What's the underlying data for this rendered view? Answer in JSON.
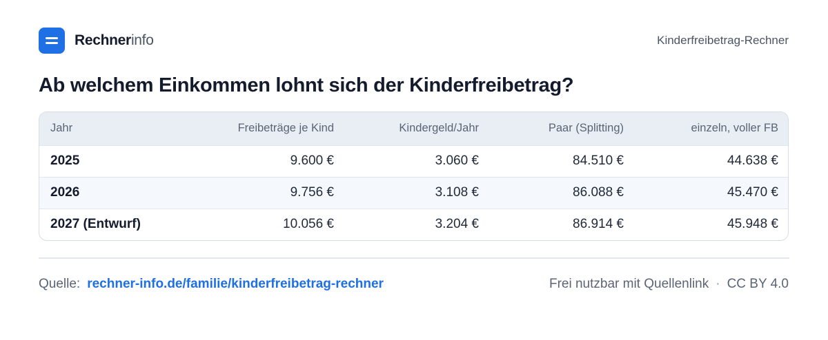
{
  "brand": {
    "strong": "Rechner",
    "light": "info"
  },
  "header": {
    "tool_name": "Kinderfreibetrag-Rechner"
  },
  "title": "Ab welchem Einkommen lohnt sich der Kinderfreibetrag?",
  "table": {
    "headers": [
      "Jahr",
      "Freibeträge je Kind",
      "Kindergeld/Jahr",
      "Paar (Splitting)",
      "einzeln, voller FB"
    ],
    "rows": [
      [
        "2025",
        "9.600 €",
        "3.060 €",
        "84.510 €",
        "44.638 €"
      ],
      [
        "2026",
        "9.756 €",
        "3.108 €",
        "86.088 €",
        "45.470 €"
      ],
      [
        "2027 (Entwurf)",
        "10.056 €",
        "3.204 €",
        "86.914 €",
        "45.948 €"
      ]
    ]
  },
  "footer": {
    "source_label": "Quelle:",
    "source_link": "rechner-info.de/familie/kinderfreibetrag-rechner",
    "usage": "Frei nutzbar mit Quellenlink",
    "separator": "·",
    "license": "CC BY 4.0"
  },
  "colors": {
    "accent": "#1f6fe5",
    "header_bg": "#e9eef5",
    "alt_row_bg": "#f5f8fc",
    "border": "#d6dde8"
  },
  "icons": {
    "logo": "equals-logo-icon"
  }
}
